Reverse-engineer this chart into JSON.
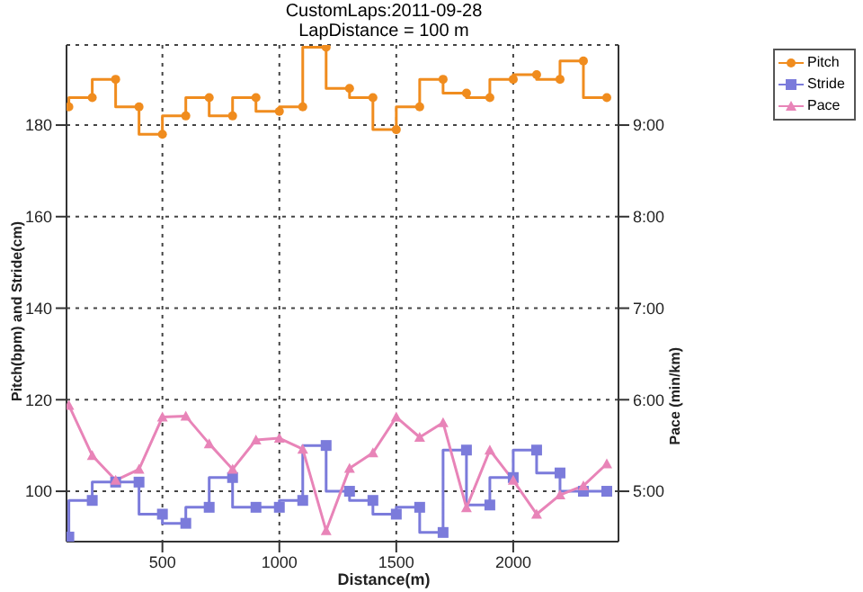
{
  "chart_data": {
    "type": "line",
    "title": "CustomLaps:2011-09-28",
    "subtitle": "LapDistance = 100 m",
    "xlabel": "Distance(m)",
    "ylabel": "Pitch(bpm) and Stride(cm)",
    "y2label": "Pace (min/km)",
    "x": [
      100,
      200,
      300,
      400,
      500,
      600,
      700,
      800,
      900,
      1000,
      1100,
      1200,
      1300,
      1400,
      1500,
      1600,
      1700,
      1800,
      1900,
      2000,
      2100,
      2200,
      2300,
      2400
    ],
    "series": [
      {
        "name": "Pitch",
        "type": "step",
        "color": "#f08c1e",
        "marker": "circle",
        "values": [
          184,
          186,
          190,
          184,
          178,
          182,
          186,
          182,
          186,
          183,
          184,
          197,
          188,
          186,
          179,
          184,
          190,
          187,
          186,
          190,
          191,
          190,
          194,
          186
        ]
      },
      {
        "name": "Stride",
        "type": "step",
        "color": "#7b7bdb",
        "marker": "square",
        "values": [
          90,
          98,
          102,
          102,
          95,
          93,
          96.5,
          103,
          96.5,
          96.5,
          98,
          110,
          100,
          98,
          95,
          96.5,
          91,
          109,
          97,
          103,
          109,
          104,
          100,
          100
        ]
      },
      {
        "name": "Pace",
        "axis": "y2",
        "color": "#e884b8",
        "marker": "triangle",
        "values": [
          5.94,
          5.39,
          5.12,
          5.24,
          5.81,
          5.82,
          5.52,
          5.24,
          5.56,
          5.58,
          5.46,
          4.57,
          5.25,
          5.42,
          5.81,
          5.59,
          5.75,
          4.82,
          5.45,
          5.12,
          4.75,
          4.96,
          5.06,
          5.3
        ]
      }
    ],
    "xlim": [
      90,
      2450
    ],
    "xticks": [
      500,
      1000,
      1500,
      2000
    ],
    "ylim": [
      89,
      197.5
    ],
    "yticks": [
      100,
      120,
      140,
      160,
      180
    ],
    "y2lim": [
      4.45,
      9.875
    ],
    "y2ticks": [
      {
        "value": 5,
        "label": "5:00"
      },
      {
        "value": 6,
        "label": "6:00"
      },
      {
        "value": 7,
        "label": "7:00"
      },
      {
        "value": 8,
        "label": "8:00"
      },
      {
        "value": 9,
        "label": "9:00"
      }
    ],
    "grid": true,
    "legend": "top right"
  }
}
